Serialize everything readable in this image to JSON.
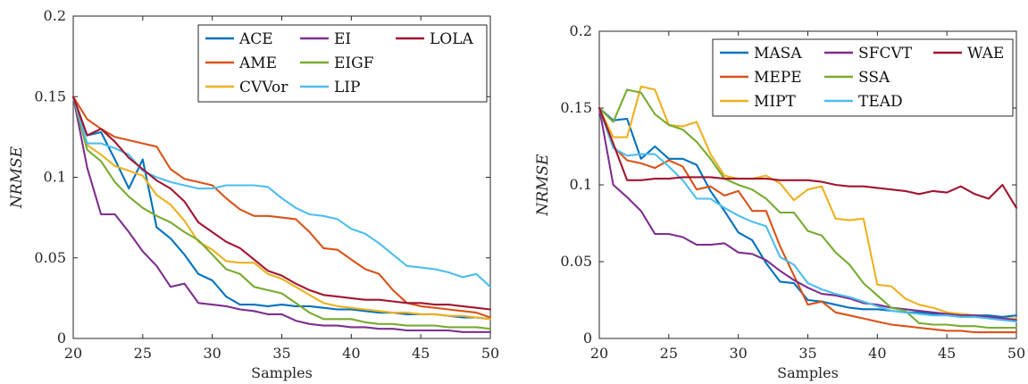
{
  "chart_data": [
    {
      "type": "line",
      "xlabel": "Samples",
      "ylabel": "NRMSE",
      "xlim": [
        20,
        50
      ],
      "ylim": [
        0,
        0.2
      ],
      "x_ticks": [
        "20",
        "25",
        "30",
        "35",
        "40",
        "45",
        "50"
      ],
      "y_ticks": [
        "0",
        "0.05",
        "0.1",
        "0.15",
        "0.2"
      ],
      "legend_position": "top-right",
      "legend_columns": 3,
      "x": [
        20,
        21,
        22,
        23,
        24,
        25,
        26,
        27,
        28,
        29,
        30,
        31,
        32,
        33,
        34,
        35,
        36,
        37,
        38,
        39,
        40,
        41,
        42,
        43,
        44,
        45,
        46,
        47,
        48,
        49,
        50
      ],
      "series": [
        {
          "name": "ACE",
          "color": "#0072BD",
          "legend_col": 0,
          "legend_row": 0,
          "values": [
            0.15,
            0.126,
            0.128,
            0.111,
            0.093,
            0.111,
            0.069,
            0.062,
            0.052,
            0.04,
            0.036,
            0.026,
            0.021,
            0.021,
            0.02,
            0.021,
            0.02,
            0.02,
            0.019,
            0.018,
            0.018,
            0.017,
            0.016,
            0.016,
            0.015,
            0.015,
            0.015,
            0.014,
            0.013,
            0.013,
            0.012
          ]
        },
        {
          "name": "AME",
          "color": "#D95319",
          "legend_col": 0,
          "legend_row": 1,
          "values": [
            0.15,
            0.136,
            0.13,
            0.125,
            0.123,
            0.121,
            0.119,
            0.105,
            0.099,
            0.097,
            0.095,
            0.087,
            0.08,
            0.076,
            0.076,
            0.075,
            0.074,
            0.066,
            0.056,
            0.055,
            0.049,
            0.043,
            0.04,
            0.03,
            0.022,
            0.02,
            0.019,
            0.018,
            0.017,
            0.016,
            0.013
          ]
        },
        {
          "name": "CVVor",
          "color": "#EDB120",
          "legend_col": 0,
          "legend_row": 2,
          "values": [
            0.15,
            0.12,
            0.114,
            0.107,
            0.104,
            0.101,
            0.089,
            0.083,
            0.073,
            0.06,
            0.055,
            0.048,
            0.047,
            0.047,
            0.04,
            0.037,
            0.032,
            0.027,
            0.022,
            0.02,
            0.019,
            0.018,
            0.017,
            0.016,
            0.016,
            0.015,
            0.015,
            0.014,
            0.014,
            0.013,
            0.012
          ]
        },
        {
          "name": "EI",
          "color": "#7E2F8E",
          "legend_col": 1,
          "legend_row": 0,
          "values": [
            0.15,
            0.106,
            0.077,
            0.077,
            0.066,
            0.054,
            0.045,
            0.032,
            0.034,
            0.022,
            0.021,
            0.02,
            0.018,
            0.017,
            0.015,
            0.015,
            0.011,
            0.009,
            0.008,
            0.008,
            0.007,
            0.007,
            0.006,
            0.006,
            0.005,
            0.005,
            0.005,
            0.005,
            0.004,
            0.004,
            0.004
          ]
        },
        {
          "name": "EIGF",
          "color": "#77AC30",
          "legend_col": 1,
          "legend_row": 1,
          "values": [
            0.15,
            0.117,
            0.11,
            0.097,
            0.088,
            0.081,
            0.076,
            0.072,
            0.066,
            0.061,
            0.052,
            0.043,
            0.04,
            0.032,
            0.03,
            0.028,
            0.022,
            0.016,
            0.012,
            0.012,
            0.012,
            0.01,
            0.009,
            0.009,
            0.008,
            0.008,
            0.008,
            0.007,
            0.007,
            0.007,
            0.006
          ]
        },
        {
          "name": "LIP",
          "color": "#4DBEEE",
          "legend_col": 1,
          "legend_row": 2,
          "values": [
            0.15,
            0.121,
            0.121,
            0.118,
            0.114,
            0.104,
            0.1,
            0.097,
            0.095,
            0.093,
            0.093,
            0.095,
            0.095,
            0.095,
            0.094,
            0.087,
            0.081,
            0.077,
            0.076,
            0.074,
            0.068,
            0.065,
            0.059,
            0.052,
            0.045,
            0.044,
            0.043,
            0.041,
            0.038,
            0.04,
            0.032
          ]
        },
        {
          "name": "LOLA",
          "color": "#A2142F",
          "legend_col": 2,
          "legend_row": 0,
          "values": [
            0.15,
            0.126,
            0.13,
            0.122,
            0.112,
            0.105,
            0.098,
            0.093,
            0.085,
            0.072,
            0.066,
            0.06,
            0.056,
            0.049,
            0.042,
            0.039,
            0.034,
            0.03,
            0.027,
            0.026,
            0.025,
            0.024,
            0.024,
            0.023,
            0.022,
            0.022,
            0.021,
            0.021,
            0.02,
            0.019,
            0.018
          ]
        }
      ]
    },
    {
      "type": "line",
      "xlabel": "Samples",
      "ylabel": "NRMSE",
      "xlim": [
        20,
        50
      ],
      "ylim": [
        0,
        0.2
      ],
      "x_ticks": [
        "20",
        "25",
        "30",
        "35",
        "40",
        "45",
        "50"
      ],
      "y_ticks": [
        "0",
        "0.05",
        "0.1",
        "0.15",
        "0.2"
      ],
      "legend_position": "top-right",
      "legend_columns": 3,
      "x": [
        20,
        21,
        22,
        23,
        24,
        25,
        26,
        27,
        28,
        29,
        30,
        31,
        32,
        33,
        34,
        35,
        36,
        37,
        38,
        39,
        40,
        41,
        42,
        43,
        44,
        45,
        46,
        47,
        48,
        49,
        50
      ],
      "series": [
        {
          "name": "MASA",
          "color": "#0072BD",
          "legend_col": 0,
          "legend_row": 0,
          "values": [
            0.15,
            0.142,
            0.143,
            0.117,
            0.125,
            0.117,
            0.117,
            0.113,
            0.096,
            0.083,
            0.069,
            0.064,
            0.049,
            0.037,
            0.036,
            0.025,
            0.024,
            0.022,
            0.02,
            0.019,
            0.019,
            0.018,
            0.017,
            0.017,
            0.016,
            0.016,
            0.016,
            0.015,
            0.015,
            0.014,
            0.015
          ]
        },
        {
          "name": "MEPE",
          "color": "#D95319",
          "legend_col": 0,
          "legend_row": 1,
          "values": [
            0.15,
            0.125,
            0.116,
            0.114,
            0.111,
            0.116,
            0.112,
            0.097,
            0.099,
            0.093,
            0.096,
            0.083,
            0.083,
            0.06,
            0.041,
            0.022,
            0.024,
            0.017,
            0.015,
            0.013,
            0.011,
            0.009,
            0.008,
            0.007,
            0.006,
            0.005,
            0.005,
            0.004,
            0.004,
            0.004,
            0.004
          ]
        },
        {
          "name": "MIPT",
          "color": "#EDB120",
          "legend_col": 0,
          "legend_row": 2,
          "values": [
            0.15,
            0.131,
            0.131,
            0.164,
            0.162,
            0.139,
            0.138,
            0.141,
            0.12,
            0.106,
            0.104,
            0.104,
            0.106,
            0.101,
            0.09,
            0.097,
            0.099,
            0.078,
            0.077,
            0.078,
            0.035,
            0.034,
            0.026,
            0.022,
            0.02,
            0.017,
            0.016,
            0.015,
            0.014,
            0.013,
            0.013
          ]
        },
        {
          "name": "SFCVT",
          "color": "#7E2F8E",
          "legend_col": 1,
          "legend_row": 0,
          "values": [
            0.15,
            0.1,
            0.092,
            0.083,
            0.068,
            0.068,
            0.066,
            0.061,
            0.061,
            0.062,
            0.056,
            0.055,
            0.051,
            0.044,
            0.038,
            0.033,
            0.029,
            0.028,
            0.026,
            0.023,
            0.022,
            0.02,
            0.019,
            0.018,
            0.017,
            0.016,
            0.015,
            0.015,
            0.014,
            0.013,
            0.012
          ]
        },
        {
          "name": "SSA",
          "color": "#77AC30",
          "legend_col": 1,
          "legend_row": 1,
          "values": [
            0.15,
            0.141,
            0.162,
            0.16,
            0.146,
            0.139,
            0.136,
            0.128,
            0.117,
            0.104,
            0.1,
            0.097,
            0.091,
            0.082,
            0.082,
            0.07,
            0.067,
            0.056,
            0.048,
            0.036,
            0.028,
            0.02,
            0.018,
            0.01,
            0.009,
            0.009,
            0.008,
            0.008,
            0.007,
            0.007,
            0.007
          ]
        },
        {
          "name": "TEAD",
          "color": "#4DBEEE",
          "legend_col": 1,
          "legend_row": 2,
          "values": [
            0.15,
            0.124,
            0.119,
            0.12,
            0.12,
            0.112,
            0.103,
            0.091,
            0.091,
            0.085,
            0.08,
            0.076,
            0.073,
            0.053,
            0.048,
            0.036,
            0.032,
            0.029,
            0.027,
            0.024,
            0.021,
            0.018,
            0.017,
            0.016,
            0.015,
            0.015,
            0.014,
            0.014,
            0.013,
            0.012,
            0.011
          ]
        },
        {
          "name": "WAE",
          "color": "#A2142F",
          "legend_col": 2,
          "legend_row": 0,
          "values": [
            0.15,
            0.127,
            0.103,
            0.103,
            0.104,
            0.104,
            0.105,
            0.105,
            0.105,
            0.104,
            0.104,
            0.104,
            0.104,
            0.103,
            0.103,
            0.103,
            0.102,
            0.1,
            0.099,
            0.099,
            0.098,
            0.097,
            0.096,
            0.094,
            0.096,
            0.095,
            0.099,
            0.094,
            0.091,
            0.1,
            0.085
          ]
        }
      ]
    }
  ]
}
